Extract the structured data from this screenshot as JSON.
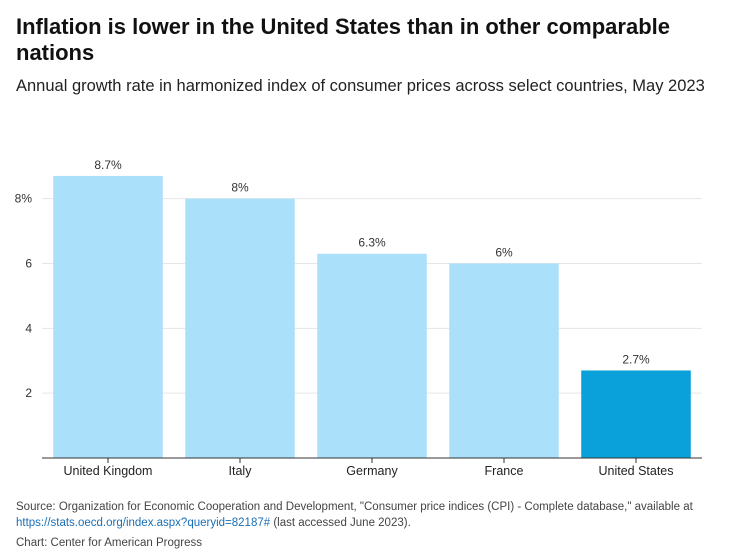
{
  "chart_data": {
    "type": "bar",
    "title": "Inflation is lower in the United States than in other comparable nations",
    "subtitle": "Annual growth rate in harmonized index of consumer prices across select countries, May 2023",
    "categories": [
      "United Kingdom",
      "Italy",
      "Germany",
      "France",
      "United States"
    ],
    "values": [
      8.7,
      8.0,
      6.3,
      6.0,
      2.7
    ],
    "value_labels": [
      "8.7%",
      "8%",
      "6.3%",
      "6%",
      "2.7%"
    ],
    "yticks": [
      2,
      4,
      6,
      8
    ],
    "ytick_labels": [
      "2",
      "4",
      "6",
      "8%"
    ],
    "ylim": [
      0,
      9.5
    ],
    "xlabel": "",
    "ylabel": "",
    "grid": true,
    "colors": {
      "default_bar": "#abe0fb",
      "highlight_bar": "#0aa0d9",
      "grid": "#e5e5e5",
      "axis": "#333333"
    },
    "highlight": "United States"
  },
  "footer": {
    "source_text": "Source: Organization for Economic Cooperation and Development, \"Consumer price indices (CPI) - Complete database,\" available at",
    "link_text": "https://stats.oecd.org/index.aspx?queryid=82187#",
    "after_link": " (last accessed June 2023).",
    "credit": "Chart: Center for American Progress"
  }
}
